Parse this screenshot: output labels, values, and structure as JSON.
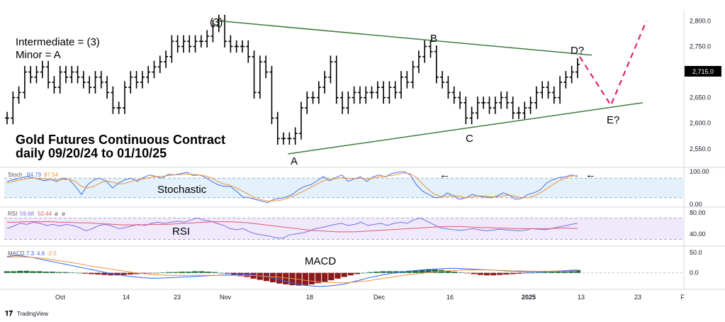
{
  "chart_data": [
    {
      "type": "bar",
      "subtype": "ohlc",
      "annotations": {
        "top_left": [
          "Intermediate = (3)",
          "Minor = A"
        ],
        "title": [
          "Gold Futures Continuous Contract",
          "daily 09/20/24 to 01/10/25"
        ],
        "waves": [
          "(3)",
          "A",
          "B",
          "C",
          "D?",
          "E?"
        ]
      },
      "ylim": [
        2515,
        2820
      ],
      "yticks": [
        "2,800.0",
        "2,750.0",
        "2,700.0",
        "2,650.0",
        "2,600.0",
        "2,550.0"
      ],
      "ytick_values": [
        2800,
        2750,
        2700,
        2650,
        2600,
        2550
      ],
      "last_price": "2,715.0",
      "xticks": [
        "Oct",
        "14",
        "23",
        "Nov",
        "18",
        "Dec",
        "16",
        "2025",
        "13",
        "23",
        "F"
      ],
      "closes": [
        2610,
        2650,
        2660,
        2700,
        2690,
        2700,
        2710,
        2680,
        2670,
        2700,
        2690,
        2700,
        2690,
        2680,
        2670,
        2690,
        2680,
        2660,
        2630,
        2630,
        2670,
        2690,
        2680,
        2690,
        2700,
        2710,
        2720,
        2730,
        2760,
        2750,
        2760,
        2750,
        2760,
        2760,
        2770,
        2790,
        2800,
        2760,
        2750,
        2750,
        2750,
        2730,
        2660,
        2720,
        2700,
        2610,
        2570,
        2570,
        2570,
        2580,
        2630,
        2650,
        2650,
        2670,
        2690,
        2720,
        2650,
        2630,
        2650,
        2660,
        2650,
        2660,
        2660,
        2670,
        2650,
        2670,
        2660,
        2690,
        2680,
        2710,
        2730,
        2750,
        2740,
        2690,
        2680,
        2660,
        2650,
        2640,
        2610,
        2620,
        2640,
        2640,
        2630,
        2640,
        2650,
        2640,
        2620,
        2620,
        2630,
        2640,
        2660,
        2670,
        2660,
        2650,
        2680,
        2690,
        2700,
        2715
      ],
      "wave_points": {
        "(3)": 2800,
        "A": 2540,
        "B": 2760,
        "C": 2597,
        "D?": 2730,
        "E?": 2635
      },
      "projection": [
        2730,
        2635,
        2800
      ],
      "trendlines": {
        "upper": [
          2800,
          2733
        ],
        "lower": [
          2540,
          2640
        ]
      }
    },
    {
      "type": "line",
      "label": "Stochastic",
      "header": {
        "name": "Stoch",
        "v1": "84.79",
        "v2": "87.54"
      },
      "ylim": [
        0,
        100
      ],
      "yticks": [
        "100.00",
        "0.00"
      ],
      "ytick_values": [
        100,
        0
      ],
      "series": [
        {
          "color": "#4b6fe0",
          "values": [
            70,
            75,
            80,
            85,
            82,
            78,
            72,
            76,
            70,
            80,
            76,
            55,
            30,
            60,
            75,
            80,
            70,
            50,
            65,
            75,
            80,
            70,
            82,
            90,
            85,
            80,
            92,
            90,
            94,
            98,
            88,
            90,
            82,
            70,
            60,
            55,
            55,
            40,
            22,
            20,
            15,
            10,
            5,
            15,
            18,
            22,
            30,
            45,
            55,
            60,
            72,
            85,
            72,
            82,
            90,
            70,
            78,
            84,
            70,
            84,
            90,
            84,
            94,
            98,
            100,
            90,
            60,
            40,
            30,
            20,
            22,
            35,
            25,
            15,
            20,
            30,
            25,
            22,
            20,
            25,
            35,
            28,
            15,
            18,
            30,
            35,
            45,
            65,
            75,
            82,
            84,
            90,
            85
          ]
        },
        {
          "color": "#f0913a",
          "values": [
            65,
            70,
            74,
            78,
            80,
            80,
            78,
            76,
            75,
            76,
            76,
            70,
            55,
            50,
            55,
            65,
            72,
            68,
            62,
            64,
            70,
            75,
            78,
            82,
            85,
            86,
            88,
            90,
            91,
            93,
            92,
            90,
            87,
            80,
            70,
            62,
            58,
            50,
            40,
            30,
            20,
            14,
            10,
            10,
            12,
            17,
            24,
            33,
            42,
            52,
            62,
            72,
            76,
            78,
            82,
            80,
            78,
            80,
            78,
            80,
            84,
            86,
            88,
            92,
            96,
            94,
            82,
            62,
            44,
            30,
            24,
            25,
            27,
            24,
            20,
            22,
            26,
            25,
            23,
            22,
            26,
            28,
            24,
            20,
            20,
            26,
            35,
            48,
            60,
            72,
            80,
            86,
            88
          ]
        }
      ],
      "bands": [
        80,
        20
      ]
    },
    {
      "type": "line",
      "label": "RSI",
      "header": {
        "name": "RSI",
        "v1": "59.68",
        "v2": "50.44",
        "v3": "ø",
        "v4": "ø"
      },
      "ylim": [
        20,
        85
      ],
      "yticks": [
        "80.00",
        "40.00"
      ],
      "ytick_values": [
        80,
        40
      ],
      "series": [
        {
          "color": "#7b6fe0",
          "values": [
            50,
            55,
            60,
            58,
            62,
            60,
            56,
            58,
            55,
            58,
            56,
            52,
            46,
            50,
            56,
            58,
            55,
            50,
            52,
            55,
            58,
            56,
            60,
            62,
            60,
            62,
            64,
            62,
            66,
            70,
            66,
            64,
            60,
            56,
            50,
            48,
            50,
            44,
            40,
            38,
            36,
            33,
            32,
            38,
            40,
            42,
            45,
            50,
            52,
            55,
            58,
            60,
            56,
            58,
            62,
            56,
            58,
            60,
            56,
            60,
            62,
            60,
            66,
            70,
            64,
            58,
            52,
            50,
            48,
            47,
            48,
            50,
            48,
            46,
            47,
            49,
            48,
            47,
            46,
            47,
            50,
            49,
            48,
            50,
            53,
            55,
            58,
            60
          ]
        },
        {
          "color": "#e8566e",
          "values": [
            62,
            62,
            63,
            63,
            63,
            63,
            62,
            62,
            61,
            61,
            60,
            59,
            58,
            57,
            57,
            57,
            58,
            58,
            58,
            59,
            60,
            61,
            62,
            63,
            63,
            63,
            62,
            61,
            59,
            57,
            55,
            53,
            51,
            49,
            47,
            46,
            45,
            44,
            44,
            44,
            45,
            46,
            47,
            48,
            49,
            50,
            51,
            52,
            53,
            54,
            54,
            54,
            53,
            52,
            52,
            51,
            51,
            50,
            50,
            50,
            50,
            50,
            51,
            51,
            50
          ]
        }
      ],
      "bands": [
        70,
        30
      ]
    },
    {
      "type": "bar",
      "label": "MACD",
      "header": {
        "name": "MACD",
        "v1": "7.3",
        "v2": "4.8",
        "v3": "-2.5"
      },
      "ylim": [
        -35,
        60
      ],
      "yticks": [
        "50.0",
        "0.0"
      ],
      "ytick_values": [
        50,
        0
      ],
      "histogram": [
        4,
        4,
        5,
        5,
        4,
        4,
        3,
        3,
        2,
        2,
        1,
        0,
        -2,
        -3,
        -4,
        -5,
        -6,
        -6,
        -5,
        -4,
        -3,
        -2,
        -1,
        0,
        1,
        2,
        2,
        3,
        3,
        4,
        4,
        3,
        2,
        0,
        -2,
        -5,
        -8,
        -10,
        -14,
        -17,
        -20,
        -23,
        -26,
        -28,
        -30,
        -31,
        -30,
        -28,
        -25,
        -22,
        -18,
        -14,
        -10,
        -6,
        -3,
        0,
        2,
        3,
        4,
        4,
        4,
        4,
        5,
        6,
        7,
        8,
        8,
        7,
        5,
        3,
        1,
        -1,
        -3,
        -5,
        -6,
        -6,
        -5,
        -4,
        -3,
        -2,
        -1,
        0,
        1,
        2,
        3,
        4,
        5,
        6,
        7
      ],
      "macd_line": [
        40,
        42,
        41,
        38,
        34,
        30,
        26,
        22,
        18,
        14,
        10,
        6,
        2,
        -2,
        -5,
        -8,
        -10,
        -12,
        -13,
        -13,
        -12,
        -11,
        -10,
        -9,
        -8,
        -7,
        -6,
        -5,
        -5,
        -4,
        -4,
        -6,
        -9,
        -12,
        -17,
        -22,
        -27,
        -30,
        -32,
        -33,
        -32,
        -30,
        -27,
        -22,
        -17,
        -12,
        -8,
        -4,
        -1,
        2,
        4,
        6,
        8,
        9,
        10,
        11,
        11,
        10,
        9,
        8,
        7,
        6,
        5,
        4,
        3,
        2,
        2,
        3,
        4,
        5,
        6,
        7
      ],
      "signal_line": [
        38,
        39,
        39,
        38,
        36,
        34,
        31,
        28,
        25,
        22,
        18,
        15,
        12,
        9,
        6,
        3,
        0,
        -2,
        -4,
        -5,
        -6,
        -6,
        -6,
        -6,
        -6,
        -6,
        -6,
        -6,
        -6,
        -6,
        -6,
        -7,
        -8,
        -9,
        -11,
        -13,
        -15,
        -18,
        -20,
        -22,
        -23,
        -24,
        -24,
        -23,
        -21,
        -19,
        -16,
        -13,
        -10,
        -7,
        -4,
        -2,
        0,
        2,
        4,
        5,
        6,
        7,
        7,
        7,
        7,
        6,
        6,
        5,
        5,
        4,
        4,
        4,
        4,
        4,
        4,
        5
      ]
    }
  ],
  "branding": "TradingView",
  "arrows": [
    "←",
    "←"
  ]
}
